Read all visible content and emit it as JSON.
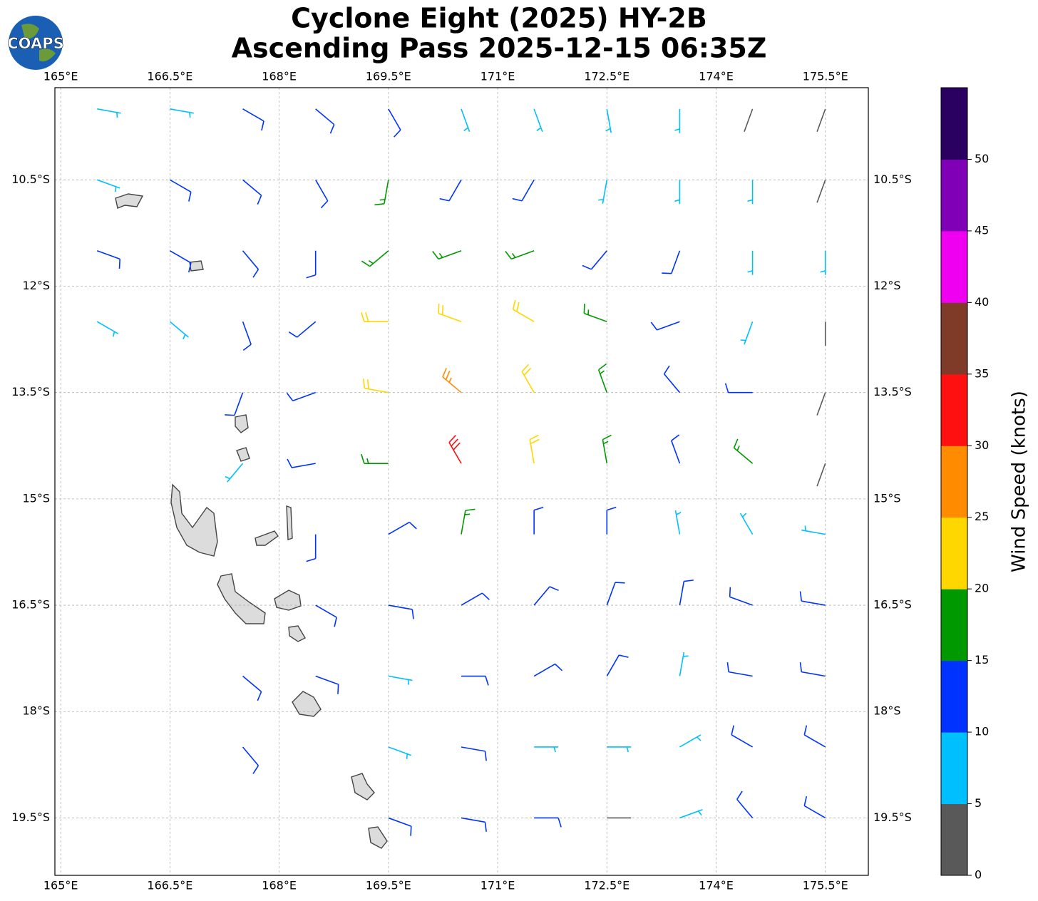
{
  "chart_data": {
    "type": "barbs",
    "title": "Cyclone Eight (2025) HY-2B",
    "subtitle": "Ascending Pass 2025-12-15 06:35Z",
    "logo": "COAPS",
    "xlim": [
      164.92,
      176.09
    ],
    "ylim": [
      -20.31,
      -9.2
    ],
    "xticks": [
      {
        "value": 165,
        "label": "165°E"
      },
      {
        "value": 166.5,
        "label": "166.5°E"
      },
      {
        "value": 168,
        "label": "168°E"
      },
      {
        "value": 169.5,
        "label": "169.5°E"
      },
      {
        "value": 171,
        "label": "171°E"
      },
      {
        "value": 172.5,
        "label": "172.5°E"
      },
      {
        "value": 174,
        "label": "174°E"
      },
      {
        "value": 175.5,
        "label": "175.5°E"
      }
    ],
    "yticks": [
      {
        "value": -10.5,
        "label": "10.5°S"
      },
      {
        "value": -12,
        "label": "12°S"
      },
      {
        "value": -13.5,
        "label": "13.5°S"
      },
      {
        "value": -15,
        "label": "15°S"
      },
      {
        "value": -16.5,
        "label": "16.5°S"
      },
      {
        "value": -18,
        "label": "18°S"
      },
      {
        "value": -19.5,
        "label": "19.5°S"
      }
    ],
    "grid": true,
    "barbs": {
      "lon": [
        165.5,
        166.5,
        167.5,
        168.5,
        169.5,
        170.5,
        171.5,
        172.5,
        173.5,
        174.5,
        175.5
      ],
      "lat": [
        -9.5,
        -10.5,
        -11.5,
        -12.5,
        -13.5,
        -14.5,
        -15.5,
        -16.5,
        -17.5,
        -18.5,
        -19.5
      ],
      "speed": [
        [
          8,
          8,
          12,
          12,
          10,
          8,
          8,
          8,
          8,
          3,
          3
        ],
        [
          8,
          10,
          12,
          12,
          16,
          14,
          12,
          8,
          8,
          8,
          3
        ],
        [
          12,
          10,
          10,
          14,
          18,
          18,
          16,
          12,
          10,
          8,
          8
        ],
        [
          8,
          8,
          10,
          14,
          20,
          24,
          22,
          16,
          12,
          8,
          4
        ],
        [
          null,
          null,
          12,
          14,
          22,
          28,
          24,
          18,
          12,
          10,
          3
        ],
        [
          null,
          null,
          8,
          12,
          16,
          32,
          24,
          16,
          14,
          16,
          3
        ],
        [
          null,
          null,
          null,
          10,
          14,
          18,
          14,
          12,
          8,
          8,
          8
        ],
        [
          null,
          null,
          null,
          12,
          12,
          12,
          12,
          10,
          12,
          12,
          12
        ],
        [
          null,
          null,
          12,
          10,
          8,
          10,
          12,
          10,
          8,
          12,
          12
        ],
        [
          null,
          null,
          12,
          null,
          8,
          10,
          8,
          8,
          8,
          10,
          12
        ],
        [
          null,
          null,
          null,
          null,
          12,
          10,
          12,
          4,
          8,
          12,
          12
        ]
      ],
      "direction": [
        [
          100,
          100,
          120,
          130,
          150,
          160,
          160,
          170,
          180,
          200,
          200
        ],
        [
          110,
          120,
          130,
          150,
          190,
          210,
          210,
          190,
          180,
          180,
          200
        ],
        [
          110,
          120,
          140,
          180,
          230,
          250,
          250,
          220,
          200,
          180,
          180
        ],
        [
          120,
          130,
          160,
          230,
          270,
          290,
          300,
          290,
          250,
          200,
          180
        ],
        [
          null,
          null,
          200,
          250,
          280,
          310,
          330,
          340,
          320,
          270,
          200
        ],
        [
          null,
          null,
          220,
          260,
          270,
          330,
          350,
          350,
          340,
          310,
          200
        ],
        [
          null,
          null,
          null,
          180,
          60,
          10,
          360,
          360,
          350,
          330,
          280
        ],
        [
          null,
          null,
          null,
          120,
          100,
          60,
          40,
          20,
          10,
          290,
          280
        ],
        [
          null,
          null,
          130,
          110,
          100,
          90,
          60,
          30,
          10,
          280,
          280
        ],
        [
          null,
          null,
          140,
          null,
          110,
          100,
          90,
          90,
          60,
          300,
          300
        ],
        [
          null,
          null,
          null,
          null,
          110,
          100,
          90,
          90,
          70,
          320,
          300
        ]
      ]
    },
    "colorbar": {
      "label": "Wind Speed (knots)",
      "bounds": [
        0,
        5,
        10,
        15,
        20,
        25,
        30,
        35,
        40,
        45,
        50,
        55
      ],
      "colors": [
        "#595959",
        "#00bfff",
        "#0033ff",
        "#009900",
        "#ffd700",
        "#ff8c00",
        "#ff1010",
        "#7f3b28",
        "#f000f0",
        "#8000b8",
        "#2a0060"
      ],
      "ticks": [
        0,
        5,
        10,
        15,
        20,
        25,
        30,
        35,
        40,
        45,
        50
      ]
    }
  }
}
